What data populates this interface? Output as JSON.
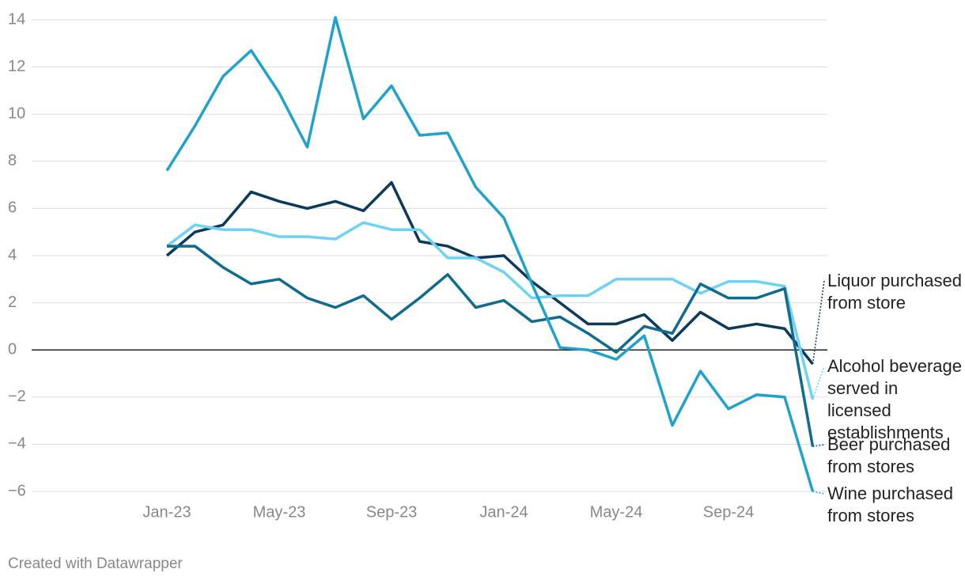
{
  "chart_data": {
    "type": "line",
    "categories": [
      "Jan-23",
      null,
      null,
      null,
      "May-23",
      null,
      null,
      null,
      "Sep-23",
      null,
      null,
      null,
      "Jan-24",
      null,
      null,
      null,
      "May-24",
      null,
      null,
      null,
      "Sep-24",
      null,
      null,
      null
    ],
    "series": [
      {
        "name": "Liquor purchased from store",
        "color": "#0b3a5c",
        "values": [
          4.0,
          5.0,
          5.3,
          6.7,
          6.3,
          6.0,
          6.3,
          5.9,
          7.1,
          4.6,
          4.4,
          3.9,
          4.0,
          2.9,
          2.0,
          1.1,
          1.1,
          1.5,
          0.4,
          1.6,
          0.9,
          1.1,
          0.9,
          -0.6
        ]
      },
      {
        "name": "Alcohol beverage served in licensed establishments",
        "color": "#6dd3f5",
        "values": [
          4.4,
          5.3,
          5.1,
          5.1,
          4.8,
          4.8,
          4.7,
          5.4,
          5.1,
          5.1,
          3.9,
          3.9,
          3.3,
          2.2,
          2.3,
          2.3,
          3.0,
          3.0,
          3.0,
          2.4,
          2.9,
          2.9,
          2.7,
          -2.1
        ]
      },
      {
        "name": "Beer purchased from stores",
        "color": "#0f6b8f",
        "values": [
          4.4,
          4.4,
          3.5,
          2.8,
          3.0,
          2.2,
          1.8,
          2.3,
          1.3,
          2.2,
          3.2,
          1.8,
          2.1,
          1.2,
          1.4,
          0.7,
          -0.1,
          1.0,
          0.7,
          2.8,
          2.2,
          2.2,
          2.6,
          -4.1
        ]
      },
      {
        "name": "Wine purchased from stores",
        "color": "#1fa2cc",
        "values": [
          7.6,
          9.5,
          11.6,
          12.7,
          10.9,
          8.6,
          14.1,
          9.8,
          11.2,
          9.1,
          9.2,
          6.9,
          5.6,
          2.8,
          0.1,
          0.0,
          -0.4,
          0.6,
          -3.2,
          -0.9,
          -2.5,
          -1.9,
          -2.0,
          -6.0
        ]
      }
    ],
    "ylim": [
      -6,
      14
    ],
    "yticks": [
      {
        "value": -6,
        "label": "−6"
      },
      {
        "value": -4,
        "label": "−4"
      },
      {
        "value": -2,
        "label": "−2"
      },
      0,
      2,
      4,
      6,
      8,
      10,
      12,
      14
    ],
    "grid": true,
    "footer": "Created with Datawrapper"
  }
}
